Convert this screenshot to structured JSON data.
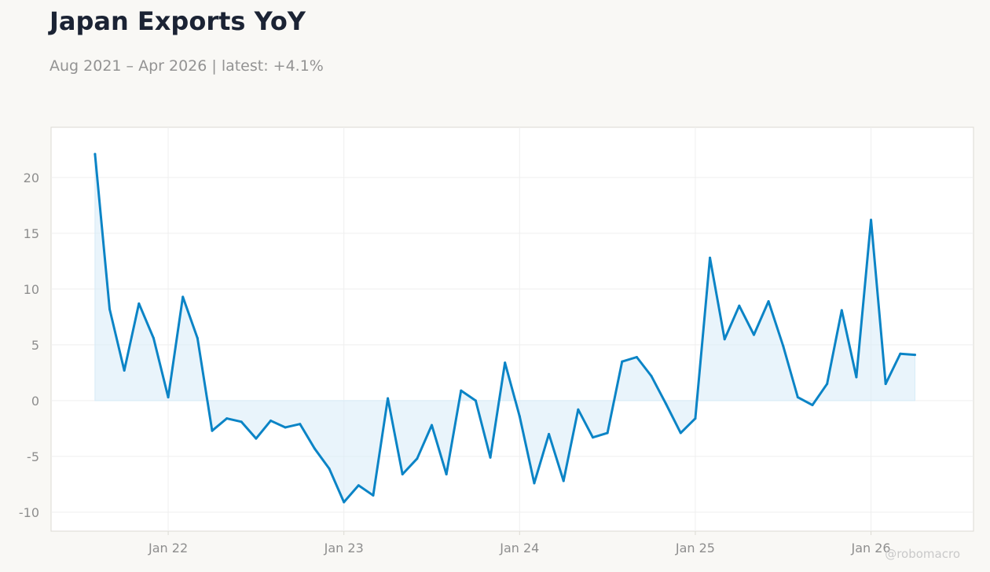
{
  "title": "Japan Exports YoY",
  "subtitle": "Aug 2021 – Apr 2026 | latest: +4.1%",
  "watermark": "@robomacro",
  "colors": {
    "line": "#0b84c6",
    "fill": "#d7ebf7",
    "grid": "#efefef",
    "frame": "#dcdad3",
    "plot_bg": "#ffffff",
    "page_bg": "#f9f8f5"
  },
  "chart_data": {
    "type": "area",
    "title": "Japan Exports YoY",
    "xlabel": "",
    "ylabel": "",
    "ylim": [
      -11.7,
      24.5
    ],
    "xlim": [
      "2021-05",
      "2026-08"
    ],
    "grid": true,
    "legend": "none",
    "x_ticks": [
      {
        "date": "2022-01",
        "label": "Jan 22"
      },
      {
        "date": "2023-01",
        "label": "Jan 23"
      },
      {
        "date": "2024-01",
        "label": "Jan 24"
      },
      {
        "date": "2025-01",
        "label": "Jan 25"
      },
      {
        "date": "2026-01",
        "label": "Jan 26"
      }
    ],
    "y_ticks": [
      {
        "value": 20,
        "label": "20"
      },
      {
        "value": 15,
        "label": "15"
      },
      {
        "value": 10,
        "label": "10"
      },
      {
        "value": 5,
        "label": "5"
      },
      {
        "value": 0,
        "label": "0"
      },
      {
        "value": -5,
        "label": "-5"
      },
      {
        "value": -10,
        "label": "-10"
      }
    ],
    "x": [
      "2021-08",
      "2021-09",
      "2021-10",
      "2021-11",
      "2021-12",
      "2022-01",
      "2022-02",
      "2022-03",
      "2022-04",
      "2022-05",
      "2022-06",
      "2022-07",
      "2022-08",
      "2022-09",
      "2022-10",
      "2022-11",
      "2022-12",
      "2023-01",
      "2023-02",
      "2023-03",
      "2023-04",
      "2023-05",
      "2023-06",
      "2023-07",
      "2023-08",
      "2023-09",
      "2023-10",
      "2023-11",
      "2023-12",
      "2024-01",
      "2024-02",
      "2024-03",
      "2024-04",
      "2024-05",
      "2024-06",
      "2024-07",
      "2024-08",
      "2024-09",
      "2024-10",
      "2024-11",
      "2024-12",
      "2025-01",
      "2025-02",
      "2025-03",
      "2025-04",
      "2025-05",
      "2025-06",
      "2025-07",
      "2025-08",
      "2025-09",
      "2025-10",
      "2025-11",
      "2025-12",
      "2026-01",
      "2026-02",
      "2026-03",
      "2026-04"
    ],
    "series": [
      {
        "values": [
          22.1,
          8.2,
          2.7,
          8.7,
          5.6,
          0.3,
          9.3,
          5.6,
          -2.7,
          -1.6,
          -1.9,
          -3.4,
          -1.8,
          -2.4,
          -2.1,
          -4.3,
          -6.1,
          -9.1,
          -7.6,
          -8.5,
          0.2,
          -6.6,
          -5.2,
          -2.2,
          -6.6,
          0.9,
          0.0,
          -5.1,
          3.4,
          -1.4,
          -7.4,
          -3.0,
          -7.2,
          -0.8,
          -3.3,
          -2.9,
          3.5,
          3.9,
          2.2,
          -0.3,
          -2.9,
          -1.6,
          12.8,
          5.5,
          8.5,
          5.9,
          8.9,
          4.9,
          0.3,
          -0.4,
          1.5,
          8.1,
          2.1,
          16.2,
          1.5,
          4.2,
          4.1
        ]
      }
    ]
  }
}
